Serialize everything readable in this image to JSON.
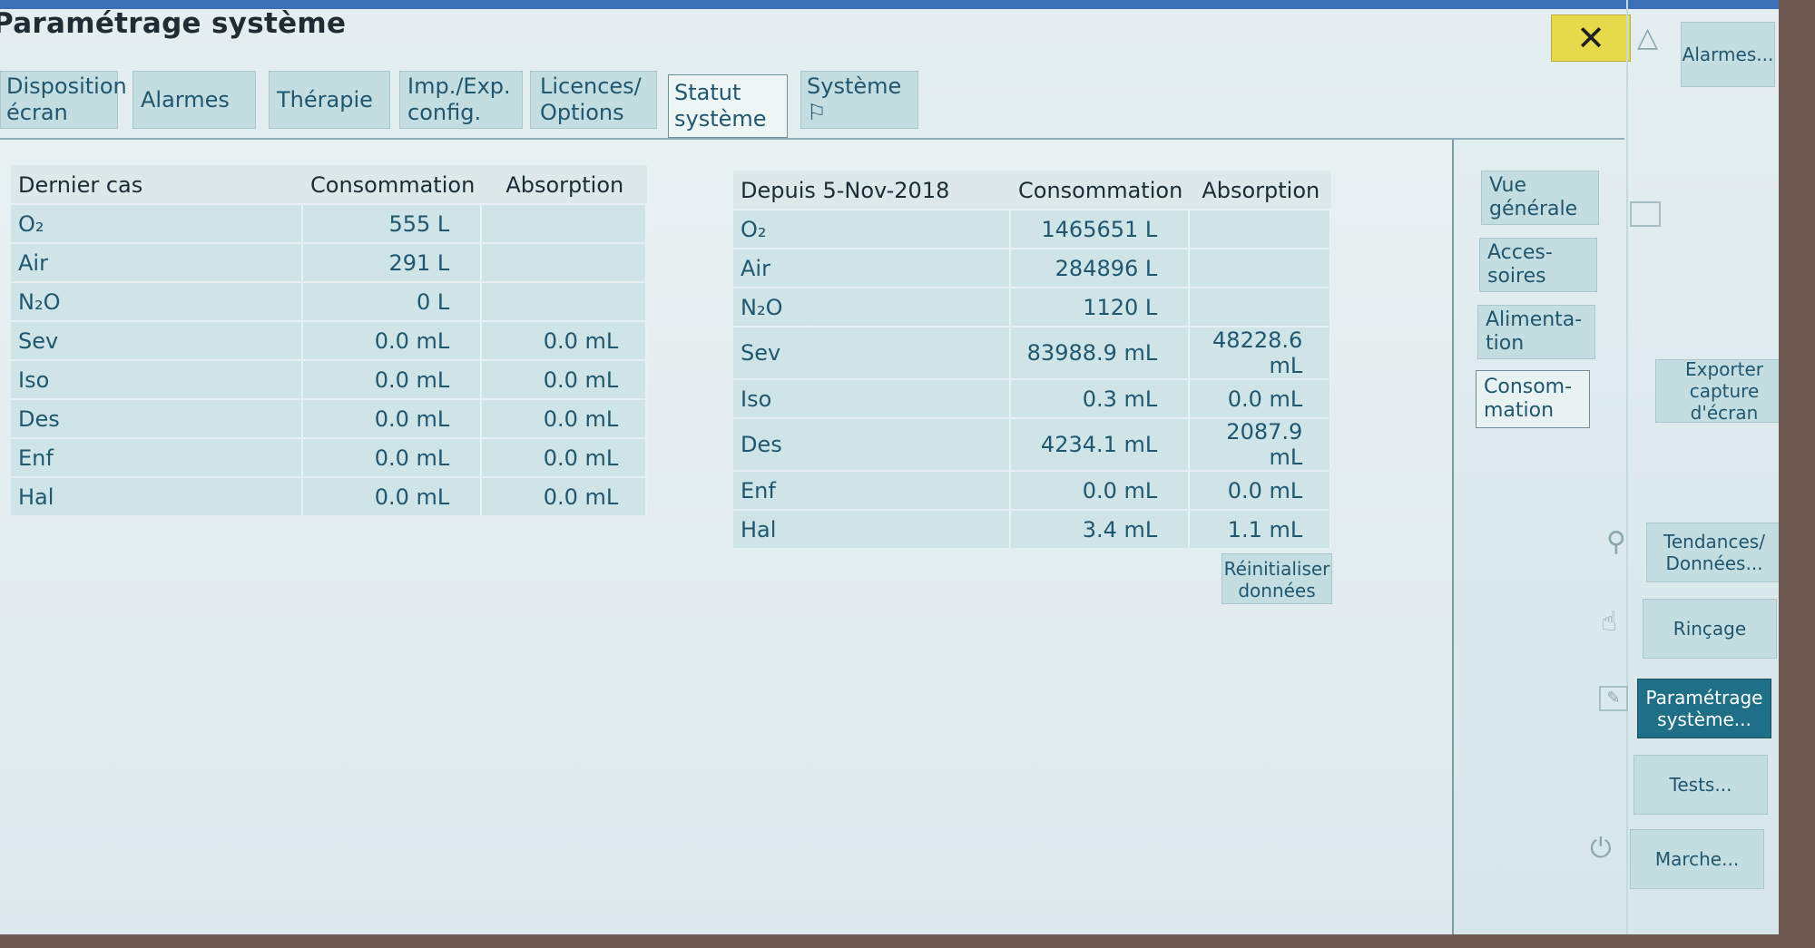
{
  "title": "Paramétrage système",
  "close_label": "✕",
  "tabs": [
    {
      "line1": "Disposition",
      "line2": "écran"
    },
    {
      "line1": "Alarmes",
      "line2": ""
    },
    {
      "line1": "Thérapie",
      "line2": ""
    },
    {
      "line1": "Imp./Exp.",
      "line2": "config."
    },
    {
      "line1": "Licences/",
      "line2": "Options"
    },
    {
      "line1": "Statut",
      "line2": "système"
    },
    {
      "line1": "Système ⚐",
      "line2": ""
    }
  ],
  "last_case": {
    "headers": [
      "Dernier cas",
      "Consommation",
      "Absorption"
    ],
    "rows": [
      {
        "gas": "O₂",
        "consumption": "555 L",
        "absorption": ""
      },
      {
        "gas": "Air",
        "consumption": "291 L",
        "absorption": ""
      },
      {
        "gas": "N₂O",
        "consumption": "0 L",
        "absorption": ""
      },
      {
        "gas": "Sev",
        "consumption": "0.0 mL",
        "absorption": "0.0 mL"
      },
      {
        "gas": "Iso",
        "consumption": "0.0 mL",
        "absorption": "0.0 mL"
      },
      {
        "gas": "Des",
        "consumption": "0.0 mL",
        "absorption": "0.0 mL"
      },
      {
        "gas": "Enf",
        "consumption": "0.0 mL",
        "absorption": "0.0 mL"
      },
      {
        "gas": "Hal",
        "consumption": "0.0 mL",
        "absorption": "0.0 mL"
      }
    ]
  },
  "since": {
    "headers": [
      "Depuis 5-Nov-2018",
      "Consommation",
      "Absorption"
    ],
    "rows": [
      {
        "gas": "O₂",
        "consumption": "1465651 L",
        "absorption": ""
      },
      {
        "gas": "Air",
        "consumption": "284896 L",
        "absorption": ""
      },
      {
        "gas": "N₂O",
        "consumption": "1120 L",
        "absorption": ""
      },
      {
        "gas": "Sev",
        "consumption": "83988.9 mL",
        "absorption": "48228.6 mL"
      },
      {
        "gas": "Iso",
        "consumption": "0.3 mL",
        "absorption": "0.0 mL"
      },
      {
        "gas": "Des",
        "consumption": "4234.1 mL",
        "absorption": "2087.9 mL"
      },
      {
        "gas": "Enf",
        "consumption": "0.0 mL",
        "absorption": "0.0 mL"
      },
      {
        "gas": "Hal",
        "consumption": "3.4 mL",
        "absorption": "1.1 mL"
      }
    ]
  },
  "reset_button": {
    "line1": "Réinitialiser",
    "line2": "données"
  },
  "subtabs": [
    {
      "line1": "Vue",
      "line2": "générale"
    },
    {
      "line1": "Acces-",
      "line2": "soires"
    },
    {
      "line1": "Alimenta-",
      "line2": "tion"
    },
    {
      "line1": "Consom-",
      "line2": "mation"
    }
  ],
  "sidebar": {
    "alarms": "Alarmes...",
    "export": {
      "line1": "Exporter",
      "line2": "capture d'écran"
    },
    "trends": {
      "line1": "Tendances/",
      "line2": "Données..."
    },
    "flush": "Rinçage",
    "setup": {
      "line1": "Paramétrage",
      "line2": "système..."
    },
    "tests": "Tests...",
    "power": "Marche..."
  }
}
